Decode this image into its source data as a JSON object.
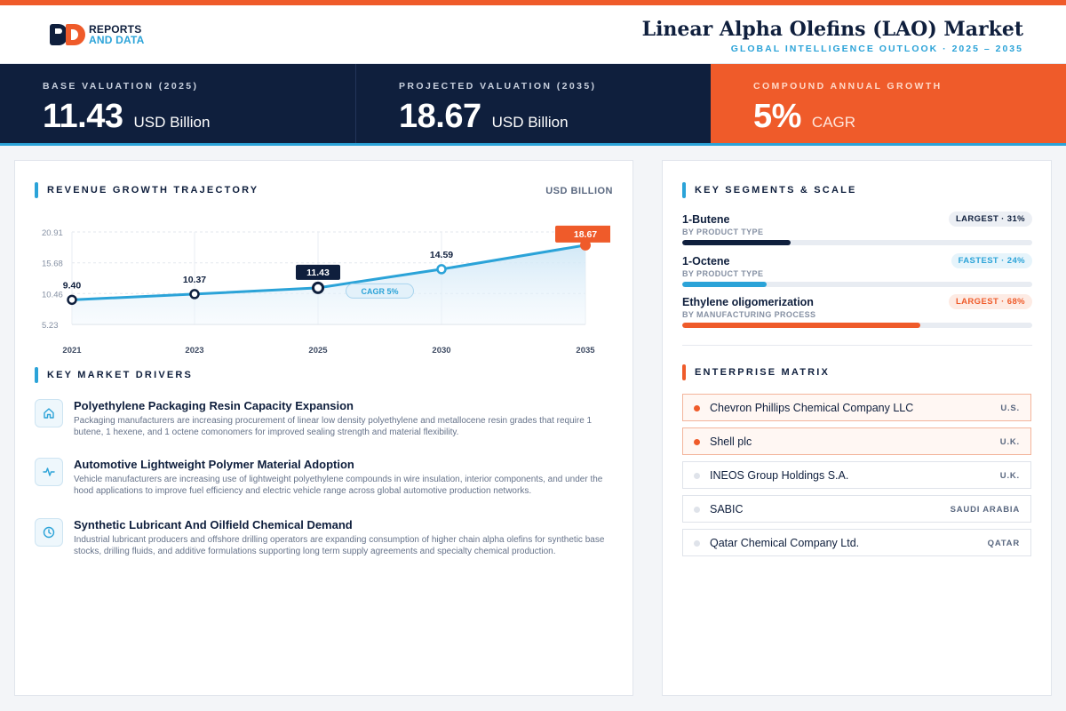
{
  "header": {
    "logo_line1": "REPORTS",
    "logo_line2": "AND DATA",
    "title": "Linear Alpha Olefins (LAO) Market",
    "subtitle": "GLOBAL INTELLIGENCE OUTLOOK  ·  2025 – 2035"
  },
  "kpis": [
    {
      "label": "BASE VALUATION (2025)",
      "value": "11.43",
      "unit": "USD Billion"
    },
    {
      "label": "PROJECTED VALUATION (2035)",
      "value": "18.67",
      "unit": "USD Billion"
    },
    {
      "label": "COMPOUND ANNUAL GROWTH",
      "value": "5%",
      "unit": "CAGR"
    }
  ],
  "trajectory": {
    "heading": "REVENUE GROWTH TRAJECTORY",
    "unit_label": "USD BILLION",
    "cagr_label": "CAGR 5%"
  },
  "chart_data": {
    "type": "area",
    "title": "REVENUE GROWTH TRAJECTORY",
    "ylabel": "USD BILLION",
    "categories": [
      "2021",
      "2023",
      "2025",
      "2030",
      "2035"
    ],
    "values": [
      9.4,
      10.37,
      11.43,
      14.59,
      18.67
    ],
    "value_labels": [
      "9.40",
      "10.37",
      "11.43",
      "14.59",
      "18.67"
    ],
    "y_ticks": [
      "20.91",
      "15.68",
      "10.46",
      "5.23"
    ],
    "y_tick_values": [
      20.91,
      15.68,
      10.46,
      5.23
    ],
    "ylim": [
      5.23,
      20.91
    ],
    "grid": true,
    "highlighted": [
      "2025",
      "2035"
    ],
    "colors": {
      "line": "#2ba3d8",
      "area": "#d8ecf8",
      "highlight_dark": "#0f1f3d",
      "highlight_accent": "#ef5b2a"
    }
  },
  "drivers": {
    "heading": "KEY MARKET DRIVERS",
    "items": [
      {
        "icon": "home-icon",
        "title": "Polyethylene Packaging Resin Capacity Expansion",
        "desc": "Packaging manufacturers are increasing procurement of linear low density polyethylene and metallocene resin grades that require 1 butene, 1 hexene, and 1 octene comonomers for improved sealing strength and material flexibility."
      },
      {
        "icon": "pulse-icon",
        "title": "Automotive Lightweight Polymer Material Adoption",
        "desc": "Vehicle manufacturers are increasing use of lightweight polyethylene compounds in wire insulation, interior components, and under the hood applications to improve fuel efficiency and electric vehicle range across global automotive production networks."
      },
      {
        "icon": "clock-icon",
        "title": "Synthetic Lubricant And Oilfield Chemical Demand",
        "desc": "Industrial lubricant producers and offshore drilling operators are expanding consumption of higher chain alpha olefins for synthetic base stocks, drilling fluids, and additive formulations supporting long term supply agreements and specialty chemical production."
      }
    ]
  },
  "segments": {
    "heading": "KEY SEGMENTS & SCALE",
    "items": [
      {
        "name": "1-Butene",
        "type": "BY PRODUCT TYPE",
        "badge": "LARGEST · 31%",
        "share": 0.31,
        "badge_bg": "#eceff4",
        "badge_fg": "#0f1f3d",
        "bar": "#0f1f3d"
      },
      {
        "name": "1-Octene",
        "type": "BY PRODUCT TYPE",
        "badge": "FASTEST · 24%",
        "share": 0.24,
        "badge_bg": "#e6f4fb",
        "badge_fg": "#2ba3d8",
        "bar": "#2ba3d8"
      },
      {
        "name": "Ethylene oligomerization",
        "type": "BY MANUFACTURING PROCESS",
        "badge": "LARGEST · 68%",
        "share": 0.68,
        "badge_bg": "#fdebe4",
        "badge_fg": "#ef5b2a",
        "bar": "#ef5b2a"
      }
    ]
  },
  "matrix": {
    "heading": "ENTERPRISE MATRIX",
    "rows": [
      {
        "name": "Chevron Phillips Chemical Company LLC",
        "country": "U.S.",
        "highlight": true
      },
      {
        "name": "Shell plc",
        "country": "U.K.",
        "highlight": true
      },
      {
        "name": "INEOS Group Holdings S.A.",
        "country": "U.K.",
        "highlight": false
      },
      {
        "name": "SABIC",
        "country": "SAUDI ARABIA",
        "highlight": false
      },
      {
        "name": "Qatar Chemical Company Ltd.",
        "country": "QATAR",
        "highlight": false
      }
    ]
  }
}
